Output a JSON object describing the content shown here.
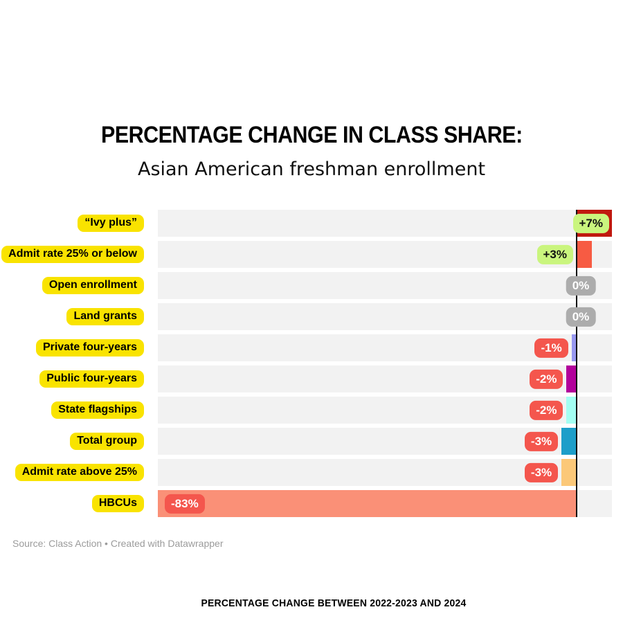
{
  "header": {
    "title": "PERCENTAGE CHANGE IN CLASS SHARE:",
    "subtitle": "Asian American freshman enrollment"
  },
  "footer": {
    "source_line": "Source: Class Action • Created with Datawrapper",
    "note": "PERCENTAGE CHANGE BETWEEN 2022-2023 AND 2024"
  },
  "colors": {
    "label_bg": "#F9E300",
    "track": "#F2F2F2",
    "baseline": "#111111",
    "badge_green": "#CAF57E",
    "badge_grey": "#ACACAC",
    "badge_red": "#F4564D",
    "badge_text_dark": "#111111",
    "badge_text_light": "#FFFFFF"
  },
  "chart_data": {
    "type": "bar",
    "orientation": "horizontal",
    "title": "PERCENTAGE CHANGE IN CLASS SHARE:",
    "subtitle": "Asian American freshman enrollment",
    "xlabel": "Percentage change between 2022-2023 and 2024",
    "xlim": [
      -83,
      7
    ],
    "grid": false,
    "legend": false,
    "categories": [
      "“Ivy plus”",
      "Admit rate 25% or below",
      "Open enrollment",
      "Land grants",
      "Private four-years",
      "Public four-years",
      "State flagships",
      "Total group",
      "Admit rate above 25%",
      "HBCUs"
    ],
    "values": [
      7,
      3,
      0,
      0,
      -1,
      -2,
      -2,
      -3,
      -3,
      -83
    ],
    "rows": [
      {
        "label": "“Ivy plus”",
        "value": 7,
        "value_label": "+7%",
        "bar_color": "#C0190F",
        "badge": "green"
      },
      {
        "label": "Admit rate 25% or below",
        "value": 3,
        "value_label": "+3%",
        "bar_color": "#F75B43",
        "badge": "green"
      },
      {
        "label": "Open enrollment",
        "value": 0,
        "value_label": "0%",
        "bar_color": null,
        "badge": "grey"
      },
      {
        "label": "Land grants",
        "value": 0,
        "value_label": "0%",
        "bar_color": null,
        "badge": "grey"
      },
      {
        "label": "Private four-years",
        "value": -1,
        "value_label": "-1%",
        "bar_color": "#9898F0",
        "badge": "red"
      },
      {
        "label": "Public four-years",
        "value": -2,
        "value_label": "-2%",
        "bar_color": "#B2009B",
        "badge": "red"
      },
      {
        "label": "State flagships",
        "value": -2,
        "value_label": "-2%",
        "bar_color": "#A3FEF2",
        "badge": "red"
      },
      {
        "label": "Total group",
        "value": -3,
        "value_label": "-3%",
        "bar_color": "#1D9EC9",
        "badge": "red"
      },
      {
        "label": "Admit rate above 25%",
        "value": -3,
        "value_label": "-3%",
        "bar_color": "#FBC879",
        "badge": "red"
      },
      {
        "label": "HBCUs",
        "value": -83,
        "value_label": "-83%",
        "bar_color": "#FA9077",
        "badge": "red"
      }
    ]
  }
}
